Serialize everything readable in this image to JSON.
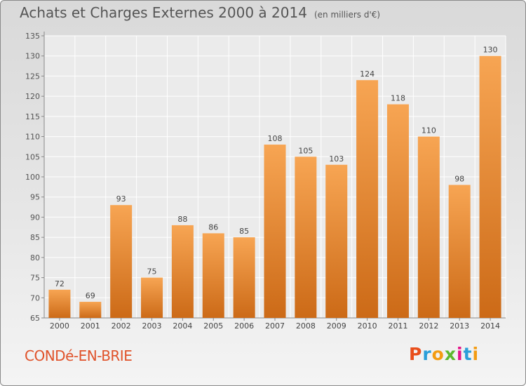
{
  "title": "Achats et Charges Externes 2000 à 2014",
  "subtitle": "(en milliers d'€)",
  "commune": "CONDé-EN-BRIE",
  "logo": {
    "letters": [
      "P",
      "r",
      "o",
      "x",
      "i",
      "t",
      "i"
    ],
    "colors": [
      "#e94e1b",
      "#2b9fd9",
      "#f39c12",
      "#5cb82e",
      "#e4148a",
      "#2b9fd9",
      "#f39c12"
    ]
  },
  "chart_data": {
    "type": "bar",
    "title": "Achats et Charges Externes 2000 à 2014",
    "categories": [
      "2000",
      "2001",
      "2002",
      "2003",
      "2004",
      "2005",
      "2006",
      "2007",
      "2008",
      "2009",
      "2010",
      "2011",
      "2012",
      "2013",
      "2014"
    ],
    "values": [
      72,
      69,
      93,
      75,
      88,
      86,
      85,
      108,
      105,
      103,
      124,
      118,
      110,
      98,
      130
    ],
    "ylim": [
      65,
      135
    ],
    "yticks": [
      65,
      70,
      75,
      80,
      85,
      90,
      95,
      100,
      105,
      110,
      115,
      120,
      125,
      130,
      135
    ],
    "grid": true,
    "colors": {
      "bar_light": "#f7a553",
      "bar_dark": "#cc6a17"
    }
  }
}
